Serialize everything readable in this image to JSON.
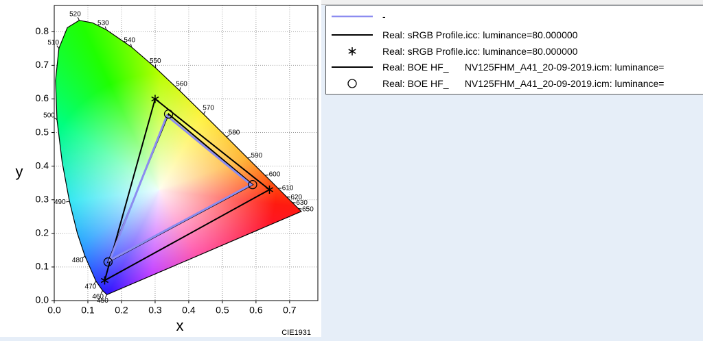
{
  "chart_data": {
    "type": "chromaticity",
    "xlabel": "x",
    "ylabel": "y",
    "annotation": "CIE1931",
    "xlim": [
      0,
      0.784
    ],
    "ylim": [
      0,
      0.878
    ],
    "xticks": [
      {
        "value": 0,
        "label": "0.0"
      },
      0.1,
      0.2,
      0.3,
      0.4,
      0.5,
      0.6,
      0.7
    ],
    "yticks": [
      {
        "value": 0,
        "label": "0.0"
      },
      0.1,
      0.2,
      0.3,
      0.4,
      0.5,
      0.6,
      0.7,
      0.8
    ],
    "grid": true,
    "spectral_locus": {
      "labels": [
        450,
        460,
        470,
        480,
        null,
        490,
        null,
        500,
        null,
        510,
        null,
        520,
        null,
        530,
        540,
        550,
        560,
        570,
        580,
        590,
        600,
        610,
        620,
        630,
        650,
        null
      ],
      "x": [
        0.1566,
        0.144,
        0.1241,
        0.0913,
        0.0687,
        0.0454,
        0.0235,
        0.0082,
        0.0039,
        0.0139,
        0.0389,
        0.0743,
        0.1142,
        0.1547,
        0.2296,
        0.3016,
        0.3731,
        0.4441,
        0.5125,
        0.5752,
        0.627,
        0.6658,
        0.6915,
        0.7079,
        0.726,
        0.7347
      ],
      "y": [
        0.0177,
        0.0297,
        0.0578,
        0.1327,
        0.2007,
        0.295,
        0.4127,
        0.5384,
        0.6548,
        0.7502,
        0.812,
        0.8338,
        0.8262,
        0.8059,
        0.7543,
        0.6923,
        0.6245,
        0.5547,
        0.4866,
        0.4242,
        0.3725,
        0.334,
        0.3083,
        0.292,
        0.274,
        0.2653
      ]
    },
    "series": [
      {
        "name": "-",
        "color": "#8c8cf0",
        "marker": "line",
        "x": [
          0.335,
          0.585,
          0.165
        ],
        "y": [
          0.55,
          0.345,
          0.12
        ]
      },
      {
        "name": "Real: sRGB Profile.icc: luminance=80.000000",
        "color": "#000000",
        "marker": "line",
        "x": [
          0.3,
          0.64,
          0.15
        ],
        "y": [
          0.6,
          0.33,
          0.06
        ]
      },
      {
        "name": "Real: sRGB Profile.icc: luminance=80.000000",
        "color": "#000000",
        "marker": "asterisk",
        "x": [
          0.3,
          0.64,
          0.15
        ],
        "y": [
          0.6,
          0.33,
          0.06
        ]
      },
      {
        "name": "Real: BOE HF_      NV125FHM_A41_20-09-2019.icm: luminance=",
        "color": "#000000",
        "marker": "line",
        "x": [
          0.34,
          0.59,
          0.16
        ],
        "y": [
          0.555,
          0.345,
          0.115
        ]
      },
      {
        "name": "Real: BOE HF_      NV125FHM_A41_20-09-2019.icm: luminance=",
        "color": "#000000",
        "marker": "circle",
        "x": [
          0.34,
          0.59,
          0.16
        ],
        "y": [
          0.555,
          0.345,
          0.115
        ]
      }
    ]
  }
}
